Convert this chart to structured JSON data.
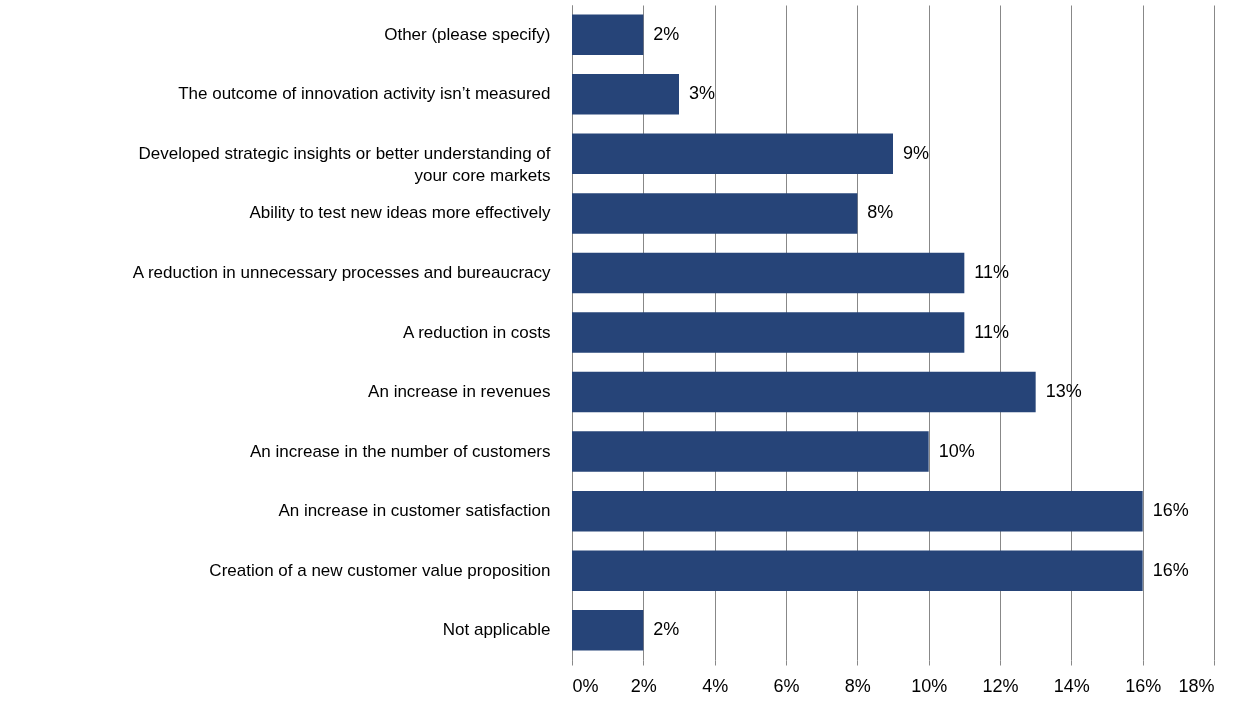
{
  "chart_data": {
    "type": "bar",
    "orientation": "horizontal",
    "categories": [
      "Other (please specify)",
      "The outcome of innovation activity isn’t measured",
      "Developed strategic insights or better understanding of your core markets",
      "Ability to test new ideas more effectively",
      "A reduction in unnecessary processes and bureaucracy",
      "A reduction in costs",
      "An increase in revenues",
      "An increase in the number of customers",
      "An increase in customer satisfaction",
      "Creation of a new customer value proposition",
      "Not applicable"
    ],
    "values": [
      2,
      3,
      9,
      8,
      11,
      11,
      13,
      10,
      16,
      16,
      2
    ],
    "value_labels": [
      "2%",
      "3%",
      "9%",
      "8%",
      "11%",
      "11%",
      "13%",
      "10%",
      "16%",
      "16%",
      "2%"
    ],
    "color": "#264478",
    "xlim": [
      0,
      18
    ],
    "xticks": [
      {
        "value": 0,
        "label": "0%"
      },
      {
        "value": 2,
        "label": "2%"
      },
      {
        "value": 4,
        "label": "4%"
      },
      {
        "value": 6,
        "label": "6%"
      },
      {
        "value": 8,
        "label": "8%"
      },
      {
        "value": 10,
        "label": "10%"
      },
      {
        "value": 12,
        "label": "12%"
      },
      {
        "value": 14,
        "label": "14%"
      },
      {
        "value": 16,
        "label": "16%"
      },
      {
        "value": 18,
        "label": "18%"
      }
    ],
    "grid": "x"
  }
}
